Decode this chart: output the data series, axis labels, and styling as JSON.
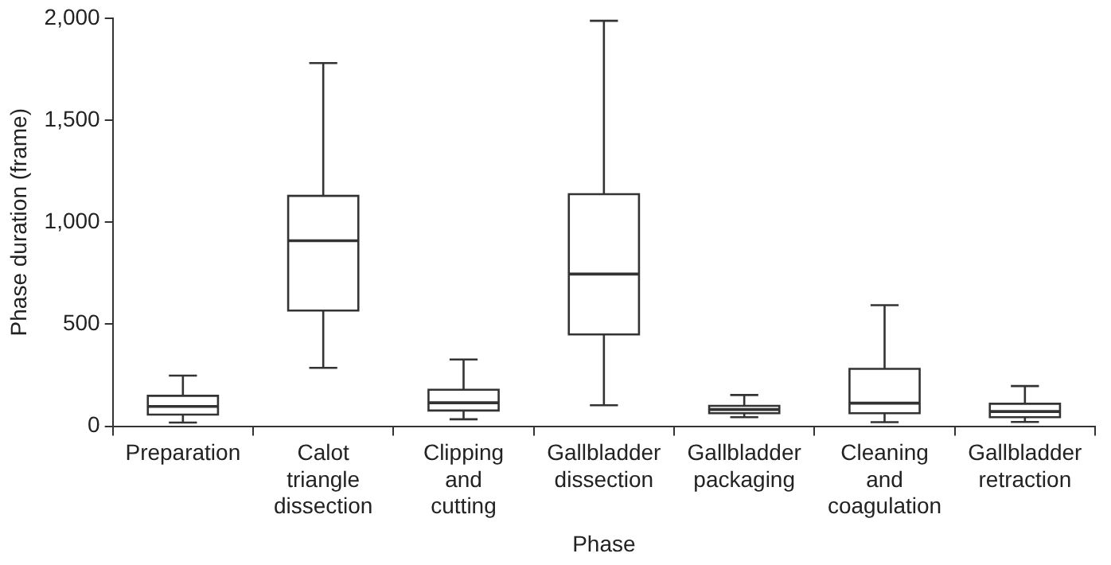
{
  "chart_data": {
    "type": "box",
    "xlabel": "Phase",
    "ylabel": "Phase duration (frame)",
    "categories": [
      "Preparation",
      "Calot triangle dissection",
      "Clipping and cutting",
      "Gallbladder dissection",
      "Gallbladder packaging",
      "Cleaning and coagulation",
      "Gallbladder retraction"
    ],
    "boxes": [
      {
        "low": 18,
        "q1": 57,
        "median": 97,
        "q3": 149,
        "high": 248
      },
      {
        "low": 286,
        "q1": 567,
        "median": 909,
        "q3": 1129,
        "high": 1780
      },
      {
        "low": 34,
        "q1": 77,
        "median": 115,
        "q3": 179,
        "high": 327
      },
      {
        "low": 103,
        "q1": 450,
        "median": 746,
        "q3": 1137,
        "high": 1987
      },
      {
        "low": 44,
        "q1": 64,
        "median": 82,
        "q3": 100,
        "high": 153
      },
      {
        "low": 20,
        "q1": 64,
        "median": 113,
        "q3": 281,
        "high": 593
      },
      {
        "low": 21,
        "q1": 44,
        "median": 72,
        "q3": 110,
        "high": 197
      }
    ],
    "color": "#333333",
    "ylim": [
      0,
      2000
    ],
    "yticks": [
      {
        "value": 0,
        "label": "0"
      },
      {
        "value": 500,
        "label": "500"
      },
      {
        "value": 1000,
        "label": "1,000"
      },
      {
        "value": 1500,
        "label": "1,500"
      },
      {
        "value": 2000,
        "label": "2,000"
      }
    ],
    "grid": false,
    "legend": false
  }
}
